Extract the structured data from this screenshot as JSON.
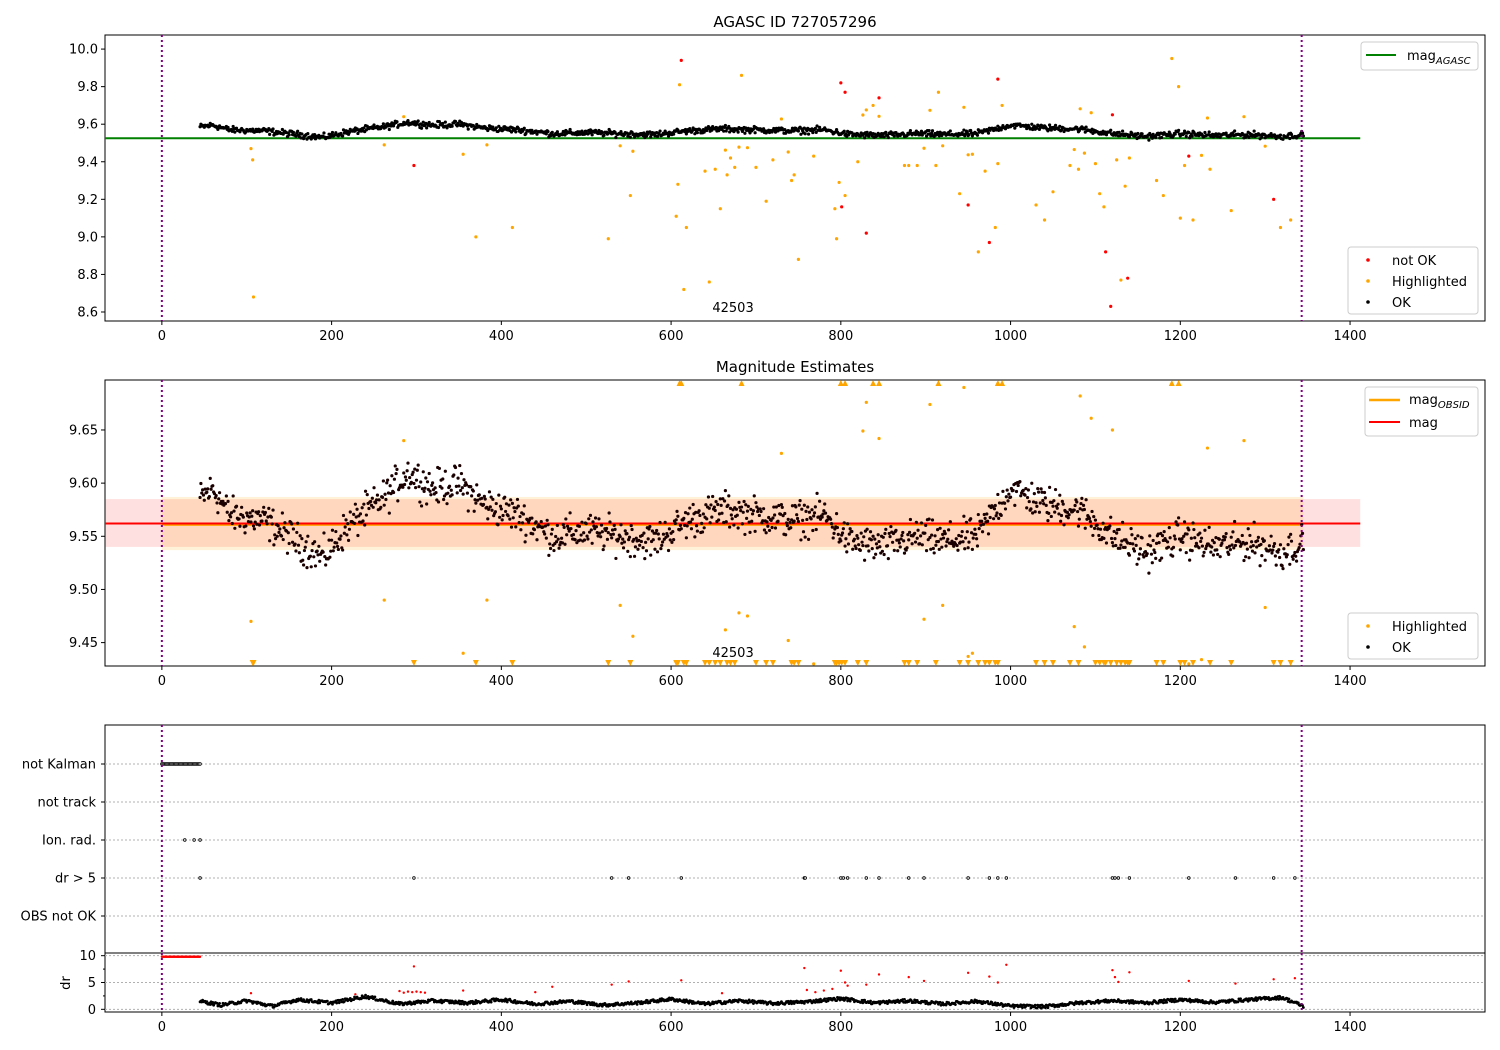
{
  "chart_data": [
    {
      "type": "scatter",
      "title": "AGASC ID 727057296",
      "xlim": [
        -67,
        1559
      ],
      "ylim": [
        8.552,
        10.075
      ],
      "xticks": [
        0,
        200,
        400,
        600,
        800,
        1000,
        1200,
        1400
      ],
      "yticks": [
        "8.6",
        "8.8",
        "9.0",
        "9.2",
        "9.4",
        "9.6",
        "9.8",
        "10.0"
      ],
      "annotation": {
        "text": "42503",
        "x": 673
      },
      "vlines": [
        0,
        1343
      ],
      "lines": [
        {
          "name": "mag_AGASC",
          "label_main": "mag",
          "label_sub": "AGASC",
          "y": 9.525,
          "x": [
            -67,
            1412
          ],
          "color": "#008000"
        }
      ],
      "legend_top": "top-right",
      "legend_bottom": "bottom-right",
      "legend_points": [
        {
          "label": "not OK",
          "color": "#ff0000"
        },
        {
          "label": "Highlighted",
          "color": "#ffa500"
        },
        {
          "label": "OK",
          "color": "#000000"
        }
      ]
    },
    {
      "type": "scatter",
      "title": "Magnitude Estimates",
      "xlim": [
        -67,
        1559
      ],
      "ylim": [
        9.428,
        9.697
      ],
      "xticks": [
        0,
        200,
        400,
        600,
        800,
        1000,
        1200,
        1400
      ],
      "yticks": [
        "9.45",
        "9.50",
        "9.55",
        "9.60",
        "9.65"
      ],
      "annotation": {
        "text": "42503",
        "x": 673
      },
      "vlines": [
        0,
        1343
      ],
      "mag_obsid": {
        "label_main": "mag",
        "label_sub": "OBSID",
        "y": 9.561,
        "band": [
          9.537,
          9.587
        ],
        "x": [
          0,
          1345
        ],
        "color": "#ffa500"
      },
      "mag": {
        "label": "mag",
        "y": 9.562,
        "band": [
          9.54,
          9.585
        ],
        "x": [
          -67,
          1412
        ],
        "color": "#ff0000"
      },
      "legend_points": [
        {
          "label": "Highlighted",
          "color": "#ffa500"
        },
        {
          "label": "OK",
          "color": "#000000"
        }
      ]
    },
    {
      "type": "scatter",
      "flags": [
        "not Kalman",
        "not track",
        "Ion. rad.",
        "dr > 5",
        "OBS not OK"
      ],
      "not_kalman_x": [
        0,
        45
      ],
      "ion_rad_x": [
        27,
        38,
        45
      ],
      "dr5_x": [
        45,
        297,
        530,
        550,
        612,
        757,
        758,
        800,
        803,
        808,
        830,
        845,
        880,
        898,
        950,
        975,
        985,
        995,
        1120,
        1123,
        1127,
        1140,
        1210,
        1265,
        1310,
        1335
      ],
      "dr_ylabel": "dr",
      "dr_yticks": [
        "0",
        "5",
        "10"
      ],
      "dr_ylim": [
        -0.5,
        10.5
      ],
      "dr_knots": [
        [
          45,
          1.5
        ],
        [
          70,
          0.8
        ],
        [
          100,
          1.6
        ],
        [
          130,
          0.6
        ],
        [
          160,
          1.8
        ],
        [
          200,
          1.2
        ],
        [
          240,
          2.4
        ],
        [
          280,
          1.0
        ],
        [
          320,
          1.6
        ],
        [
          360,
          1.2
        ],
        [
          400,
          1.8
        ],
        [
          440,
          1.0
        ],
        [
          480,
          1.5
        ],
        [
          520,
          0.8
        ],
        [
          560,
          1.2
        ],
        [
          600,
          1.9
        ],
        [
          640,
          1.0
        ],
        [
          680,
          1.6
        ],
        [
          720,
          1.1
        ],
        [
          760,
          1.4
        ],
        [
          800,
          2.0
        ],
        [
          840,
          1.2
        ],
        [
          880,
          1.6
        ],
        [
          920,
          1.0
        ],
        [
          960,
          1.5
        ],
        [
          1000,
          0.6
        ],
        [
          1040,
          0.5
        ],
        [
          1080,
          1.2
        ],
        [
          1120,
          1.6
        ],
        [
          1160,
          1.2
        ],
        [
          1200,
          1.8
        ],
        [
          1240,
          1.3
        ],
        [
          1280,
          1.8
        ],
        [
          1320,
          2.2
        ],
        [
          1345,
          0.6
        ]
      ],
      "dr_red": [
        [
          105,
          3.0
        ],
        [
          228,
          2.8
        ],
        [
          280,
          3.4
        ],
        [
          285,
          3.1
        ],
        [
          290,
          3.3
        ],
        [
          295,
          3.2
        ],
        [
          297,
          8.0
        ],
        [
          300,
          3.3
        ],
        [
          305,
          3.2
        ],
        [
          310,
          3.1
        ],
        [
          355,
          3.5
        ],
        [
          440,
          3.2
        ],
        [
          460,
          4.2
        ],
        [
          530,
          4.6
        ],
        [
          550,
          5.2
        ],
        [
          612,
          5.4
        ],
        [
          660,
          3.0
        ],
        [
          757,
          7.7
        ],
        [
          760,
          3.6
        ],
        [
          770,
          3.2
        ],
        [
          780,
          3.5
        ],
        [
          790,
          3.8
        ],
        [
          800,
          7.2
        ],
        [
          805,
          5.0
        ],
        [
          808,
          4.4
        ],
        [
          830,
          4.6
        ],
        [
          845,
          6.5
        ],
        [
          880,
          6.0
        ],
        [
          898,
          5.3
        ],
        [
          950,
          6.8
        ],
        [
          975,
          6.1
        ],
        [
          985,
          5.0
        ],
        [
          995,
          8.3
        ],
        [
          1120,
          7.3
        ],
        [
          1123,
          6.0
        ],
        [
          1127,
          5.1
        ],
        [
          1140,
          6.9
        ],
        [
          1210,
          5.3
        ],
        [
          1265,
          4.8
        ],
        [
          1310,
          5.6
        ],
        [
          1335,
          5.8
        ]
      ]
    }
  ],
  "series": {
    "ok_knots": [
      [
        45,
        9.585
      ],
      [
        60,
        9.595
      ],
      [
        80,
        9.57
      ],
      [
        120,
        9.565
      ],
      [
        160,
        9.545
      ],
      [
        190,
        9.53
      ],
      [
        220,
        9.56
      ],
      [
        260,
        9.585
      ],
      [
        290,
        9.61
      ],
      [
        320,
        9.595
      ],
      [
        350,
        9.6
      ],
      [
        380,
        9.58
      ],
      [
        420,
        9.57
      ],
      [
        460,
        9.55
      ],
      [
        500,
        9.555
      ],
      [
        540,
        9.55
      ],
      [
        580,
        9.545
      ],
      [
        620,
        9.565
      ],
      [
        660,
        9.575
      ],
      [
        700,
        9.57
      ],
      [
        740,
        9.565
      ],
      [
        780,
        9.57
      ],
      [
        810,
        9.545
      ],
      [
        850,
        9.54
      ],
      [
        890,
        9.55
      ],
      [
        920,
        9.545
      ],
      [
        960,
        9.55
      ],
      [
        1000,
        9.595
      ],
      [
        1040,
        9.58
      ],
      [
        1080,
        9.575
      ],
      [
        1120,
        9.55
      ],
      [
        1160,
        9.535
      ],
      [
        1200,
        9.55
      ],
      [
        1240,
        9.54
      ],
      [
        1280,
        9.545
      ],
      [
        1320,
        9.535
      ],
      [
        1345,
        9.545
      ]
    ],
    "ok_noise": 0.015,
    "highlighted": [
      [
        105,
        9.47
      ],
      [
        107,
        9.41
      ],
      [
        108,
        8.68
      ],
      [
        262,
        9.49
      ],
      [
        285,
        9.64
      ],
      [
        355,
        9.44
      ],
      [
        370,
        9.0
      ],
      [
        383,
        9.49
      ],
      [
        413,
        9.05
      ],
      [
        526,
        8.99
      ],
      [
        540,
        9.485
      ],
      [
        552,
        9.22
      ],
      [
        555,
        9.456
      ],
      [
        606,
        9.11
      ],
      [
        608,
        9.28
      ],
      [
        610,
        9.81
      ],
      [
        615,
        8.72
      ],
      [
        618,
        9.05
      ],
      [
        640,
        9.35
      ],
      [
        645,
        8.76
      ],
      [
        652,
        9.36
      ],
      [
        658,
        9.15
      ],
      [
        664,
        9.462
      ],
      [
        666,
        9.33
      ],
      [
        670,
        9.42
      ],
      [
        675,
        9.37
      ],
      [
        680,
        9.478
      ],
      [
        683,
        9.86
      ],
      [
        690,
        9.475
      ],
      [
        700,
        9.37
      ],
      [
        712,
        9.19
      ],
      [
        720,
        9.41
      ],
      [
        730,
        9.628
      ],
      [
        738,
        9.452
      ],
      [
        742,
        9.3
      ],
      [
        745,
        9.33
      ],
      [
        750,
        8.88
      ],
      [
        768,
        9.43
      ],
      [
        793,
        9.15
      ],
      [
        795,
        8.99
      ],
      [
        798,
        9.29
      ],
      [
        805,
        9.22
      ],
      [
        820,
        9.4
      ],
      [
        826,
        9.649
      ],
      [
        830,
        9.676
      ],
      [
        838,
        9.7
      ],
      [
        845,
        9.642
      ],
      [
        875,
        9.38
      ],
      [
        880,
        9.38
      ],
      [
        890,
        9.38
      ],
      [
        898,
        9.472
      ],
      [
        905,
        9.674
      ],
      [
        912,
        9.38
      ],
      [
        915,
        9.77
      ],
      [
        920,
        9.485
      ],
      [
        940,
        9.23
      ],
      [
        945,
        9.69
      ],
      [
        950,
        9.437
      ],
      [
        955,
        9.44
      ],
      [
        962,
        8.92
      ],
      [
        970,
        9.35
      ],
      [
        982,
        9.05
      ],
      [
        985,
        9.39
      ],
      [
        990,
        9.7
      ],
      [
        1030,
        9.17
      ],
      [
        1040,
        9.09
      ],
      [
        1050,
        9.24
      ],
      [
        1070,
        9.38
      ],
      [
        1075,
        9.465
      ],
      [
        1080,
        9.36
      ],
      [
        1082,
        9.682
      ],
      [
        1087,
        9.446
      ],
      [
        1095,
        9.661
      ],
      [
        1100,
        9.39
      ],
      [
        1105,
        9.23
      ],
      [
        1110,
        9.16
      ],
      [
        1125,
        9.41
      ],
      [
        1130,
        8.77
      ],
      [
        1135,
        9.27
      ],
      [
        1140,
        9.42
      ],
      [
        1172,
        9.3
      ],
      [
        1180,
        9.22
      ],
      [
        1190,
        9.95
      ],
      [
        1198,
        9.8
      ],
      [
        1200,
        9.1
      ],
      [
        1205,
        9.38
      ],
      [
        1215,
        9.09
      ],
      [
        1225,
        9.434
      ],
      [
        1232,
        9.633
      ],
      [
        1235,
        9.36
      ],
      [
        1260,
        9.14
      ],
      [
        1275,
        9.64
      ],
      [
        1300,
        9.483
      ],
      [
        1318,
        9.05
      ],
      [
        1330,
        9.09
      ]
    ],
    "not_ok": [
      [
        297,
        9.38
      ],
      [
        612,
        9.94
      ],
      [
        800,
        9.82
      ],
      [
        805,
        9.77
      ],
      [
        801,
        9.16
      ],
      [
        830,
        9.02
      ],
      [
        845,
        9.74
      ],
      [
        950,
        9.17
      ],
      [
        975,
        8.97
      ],
      [
        985,
        9.84
      ],
      [
        1112,
        8.92
      ],
      [
        1118,
        8.63
      ],
      [
        1120,
        9.65
      ],
      [
        1138,
        8.78
      ],
      [
        1210,
        9.43
      ],
      [
        1310,
        9.2
      ]
    ]
  }
}
